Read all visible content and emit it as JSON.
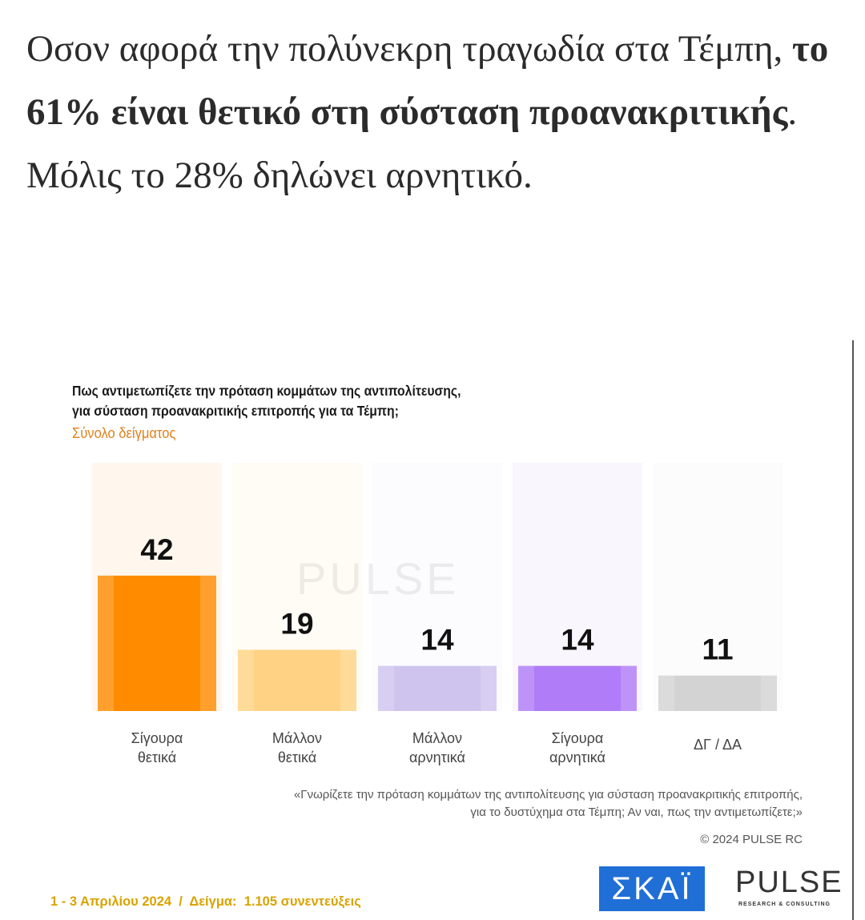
{
  "headline": [
    "Οσον αφορά την πολύνεκρη τραγωδία στα Τέμπη, ",
    "το 61% είναι θετικό στη σύσταση προανακριτικής",
    ". Μόλις το 28% δηλώνει αρνητικό."
  ],
  "chart_data": {
    "type": "bar",
    "title": [
      "Πως αντιμετωπίζετε την πρόταση κομμάτων της αντιπολίτευσης,",
      "για σύσταση προανακριτικής επιτροπής για τα Τέμπη;"
    ],
    "subtitle": "Σύνολο δείγματος",
    "categories": [
      "Σίγουρα θετικά",
      "Μάλλον θετικά",
      "Μάλλον αρνητικά",
      "Σίγουρα αρνητικά",
      "ΔΓ / ΔΑ"
    ],
    "values": [
      42,
      19,
      14,
      14,
      11
    ],
    "colors": [
      "#ff8c00",
      "#ffd383",
      "#cfc4ee",
      "#b07cf7",
      "#d3d3d3"
    ],
    "ylim": [
      0,
      77
    ],
    "note": "«Γνωρίζετε την πρόταση κομμάτων της αντιπολίτευσης για σύσταση προανακριτικής επιτροπής, για το δυστύχημα στα Τέμπη; Αν ναι, πως την αντιμετωπίζετε;»",
    "copyright": "© 2024 PULSE RC",
    "footer": "1 - 3 Απριλίου 2024  /  Δείγμα:  1.105 συνεντεύξεις"
  },
  "logos": {
    "skai": "ΣΚΑΪ",
    "pulse": "PULSE",
    "pulse_sub": "RESEARCH & CONSULTING"
  }
}
